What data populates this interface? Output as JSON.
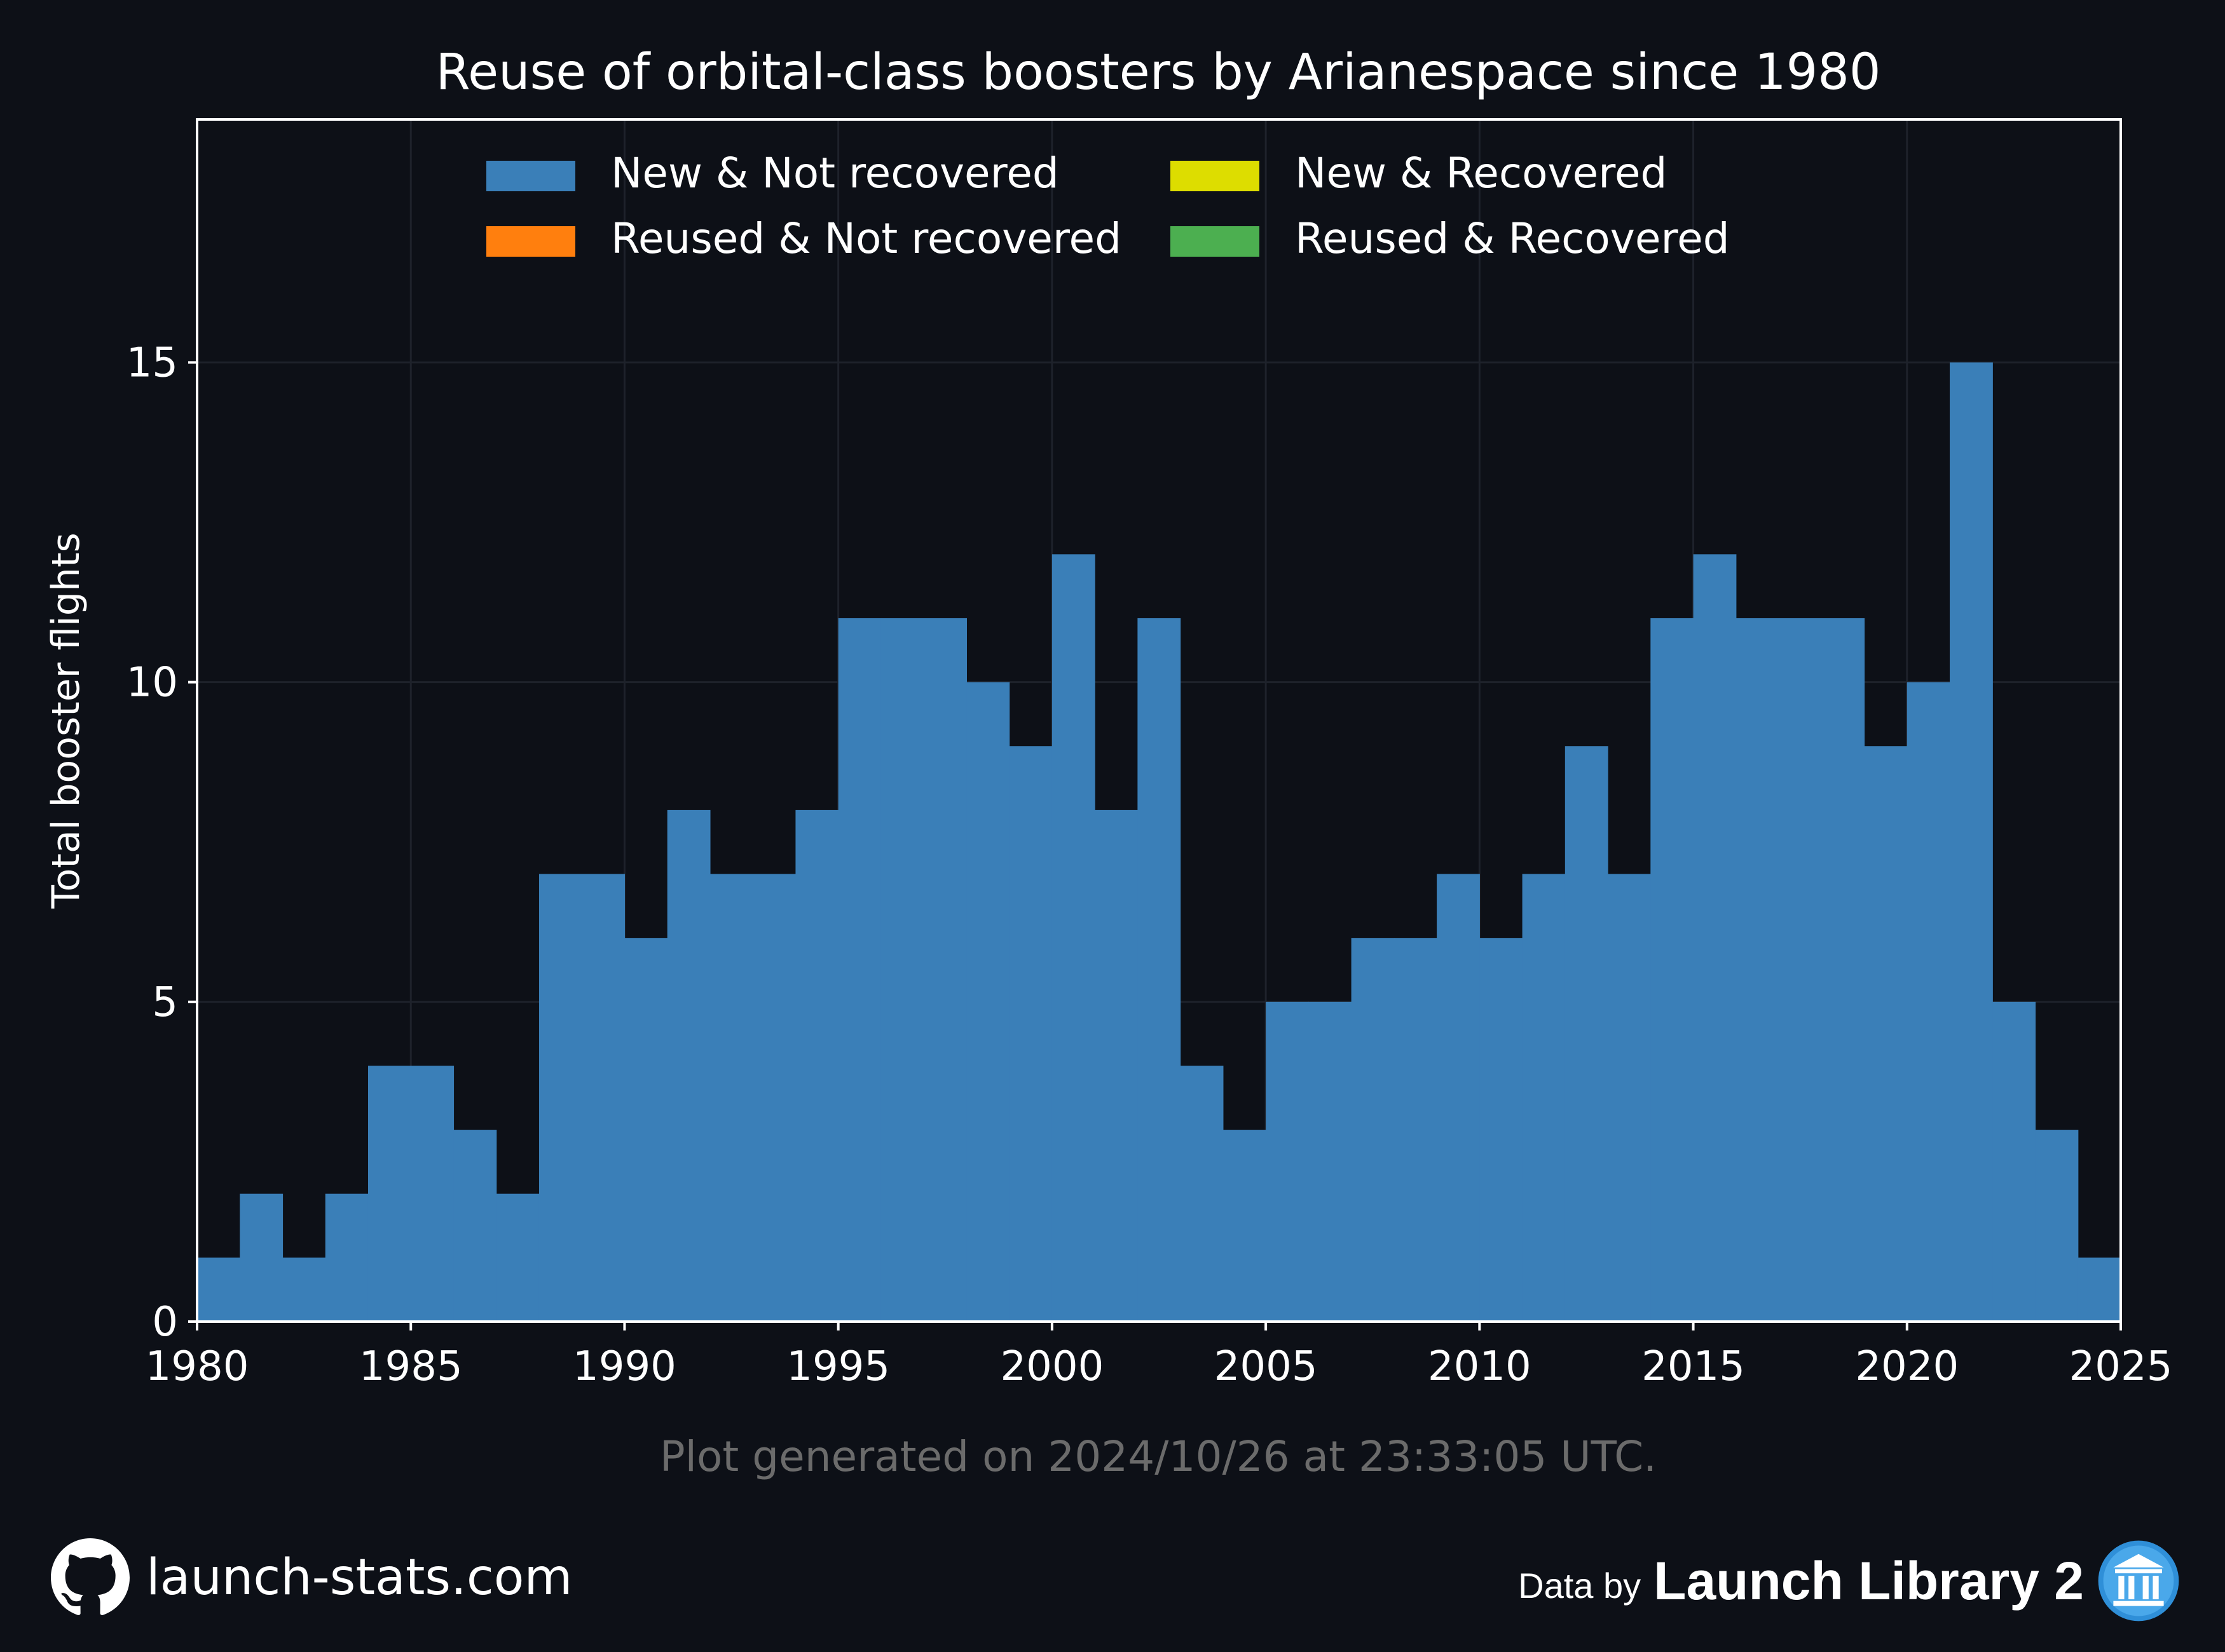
{
  "chart_data": {
    "type": "bar",
    "title": "Reuse of orbital-class boosters by Arianespace since 1980",
    "xlabel": "",
    "ylabel": "Total booster flights",
    "xlim": [
      1980,
      2025
    ],
    "ylim": [
      0,
      18.8
    ],
    "xticks": [
      1980,
      1985,
      1990,
      1995,
      2000,
      2005,
      2010,
      2015,
      2020,
      2025
    ],
    "yticks": [
      0,
      5,
      10,
      15
    ],
    "grid": true,
    "legend_position": "top",
    "categories": [
      1980,
      1981,
      1982,
      1983,
      1984,
      1985,
      1986,
      1987,
      1988,
      1989,
      1990,
      1991,
      1992,
      1993,
      1994,
      1995,
      1996,
      1997,
      1998,
      1999,
      2000,
      2001,
      2002,
      2003,
      2004,
      2005,
      2006,
      2007,
      2008,
      2009,
      2010,
      2011,
      2012,
      2013,
      2014,
      2015,
      2016,
      2017,
      2018,
      2019,
      2020,
      2021,
      2022,
      2023,
      2024
    ],
    "series": [
      {
        "name": "New & Not recovered",
        "color": "#3a7fb8",
        "values": [
          1,
          2,
          1,
          2,
          4,
          4,
          3,
          2,
          7,
          7,
          6,
          8,
          7,
          7,
          8,
          11,
          11,
          11,
          10,
          9,
          12,
          8,
          11,
          4,
          3,
          5,
          5,
          6,
          6,
          7,
          6,
          7,
          9,
          7,
          11,
          12,
          11,
          11,
          11,
          9,
          10,
          15,
          5,
          3,
          1
        ]
      },
      {
        "name": "Reused & Not recovered",
        "color": "#ff7f0e",
        "values": [
          0,
          0,
          0,
          0,
          0,
          0,
          0,
          0,
          0,
          0,
          0,
          0,
          0,
          0,
          0,
          0,
          0,
          0,
          0,
          0,
          0,
          0,
          0,
          0,
          0,
          0,
          0,
          0,
          0,
          0,
          0,
          0,
          0,
          0,
          0,
          0,
          0,
          0,
          0,
          0,
          0,
          0,
          0,
          0,
          0
        ]
      },
      {
        "name": "New & Recovered",
        "color": "#dddd00",
        "values": [
          0,
          0,
          0,
          0,
          0,
          0,
          0,
          0,
          0,
          0,
          0,
          0,
          0,
          0,
          0,
          0,
          0,
          0,
          0,
          0,
          0,
          0,
          0,
          0,
          0,
          0,
          0,
          0,
          0,
          0,
          0,
          0,
          0,
          0,
          0,
          0,
          0,
          0,
          0,
          0,
          0,
          0,
          0,
          0,
          0
        ]
      },
      {
        "name": "Reused & Recovered",
        "color": "#4caf50",
        "values": [
          0,
          0,
          0,
          0,
          0,
          0,
          0,
          0,
          0,
          0,
          0,
          0,
          0,
          0,
          0,
          0,
          0,
          0,
          0,
          0,
          0,
          0,
          0,
          0,
          0,
          0,
          0,
          0,
          0,
          0,
          0,
          0,
          0,
          0,
          0,
          0,
          0,
          0,
          0,
          0,
          0,
          0,
          0,
          0,
          0
        ]
      }
    ],
    "annotation": "Plot generated on 2024/10/26 at 23:33:05 UTC."
  },
  "footer": {
    "site": "launch-stats.com",
    "data_by": "Data by",
    "source": "Launch Library 2",
    "github_icon": "github-icon",
    "source_icon": "launch-library-icon"
  },
  "colors": {
    "background": "#0d1017",
    "text": "#ffffff",
    "annotation": "#6b6b6b",
    "grid": "#1e222b"
  }
}
